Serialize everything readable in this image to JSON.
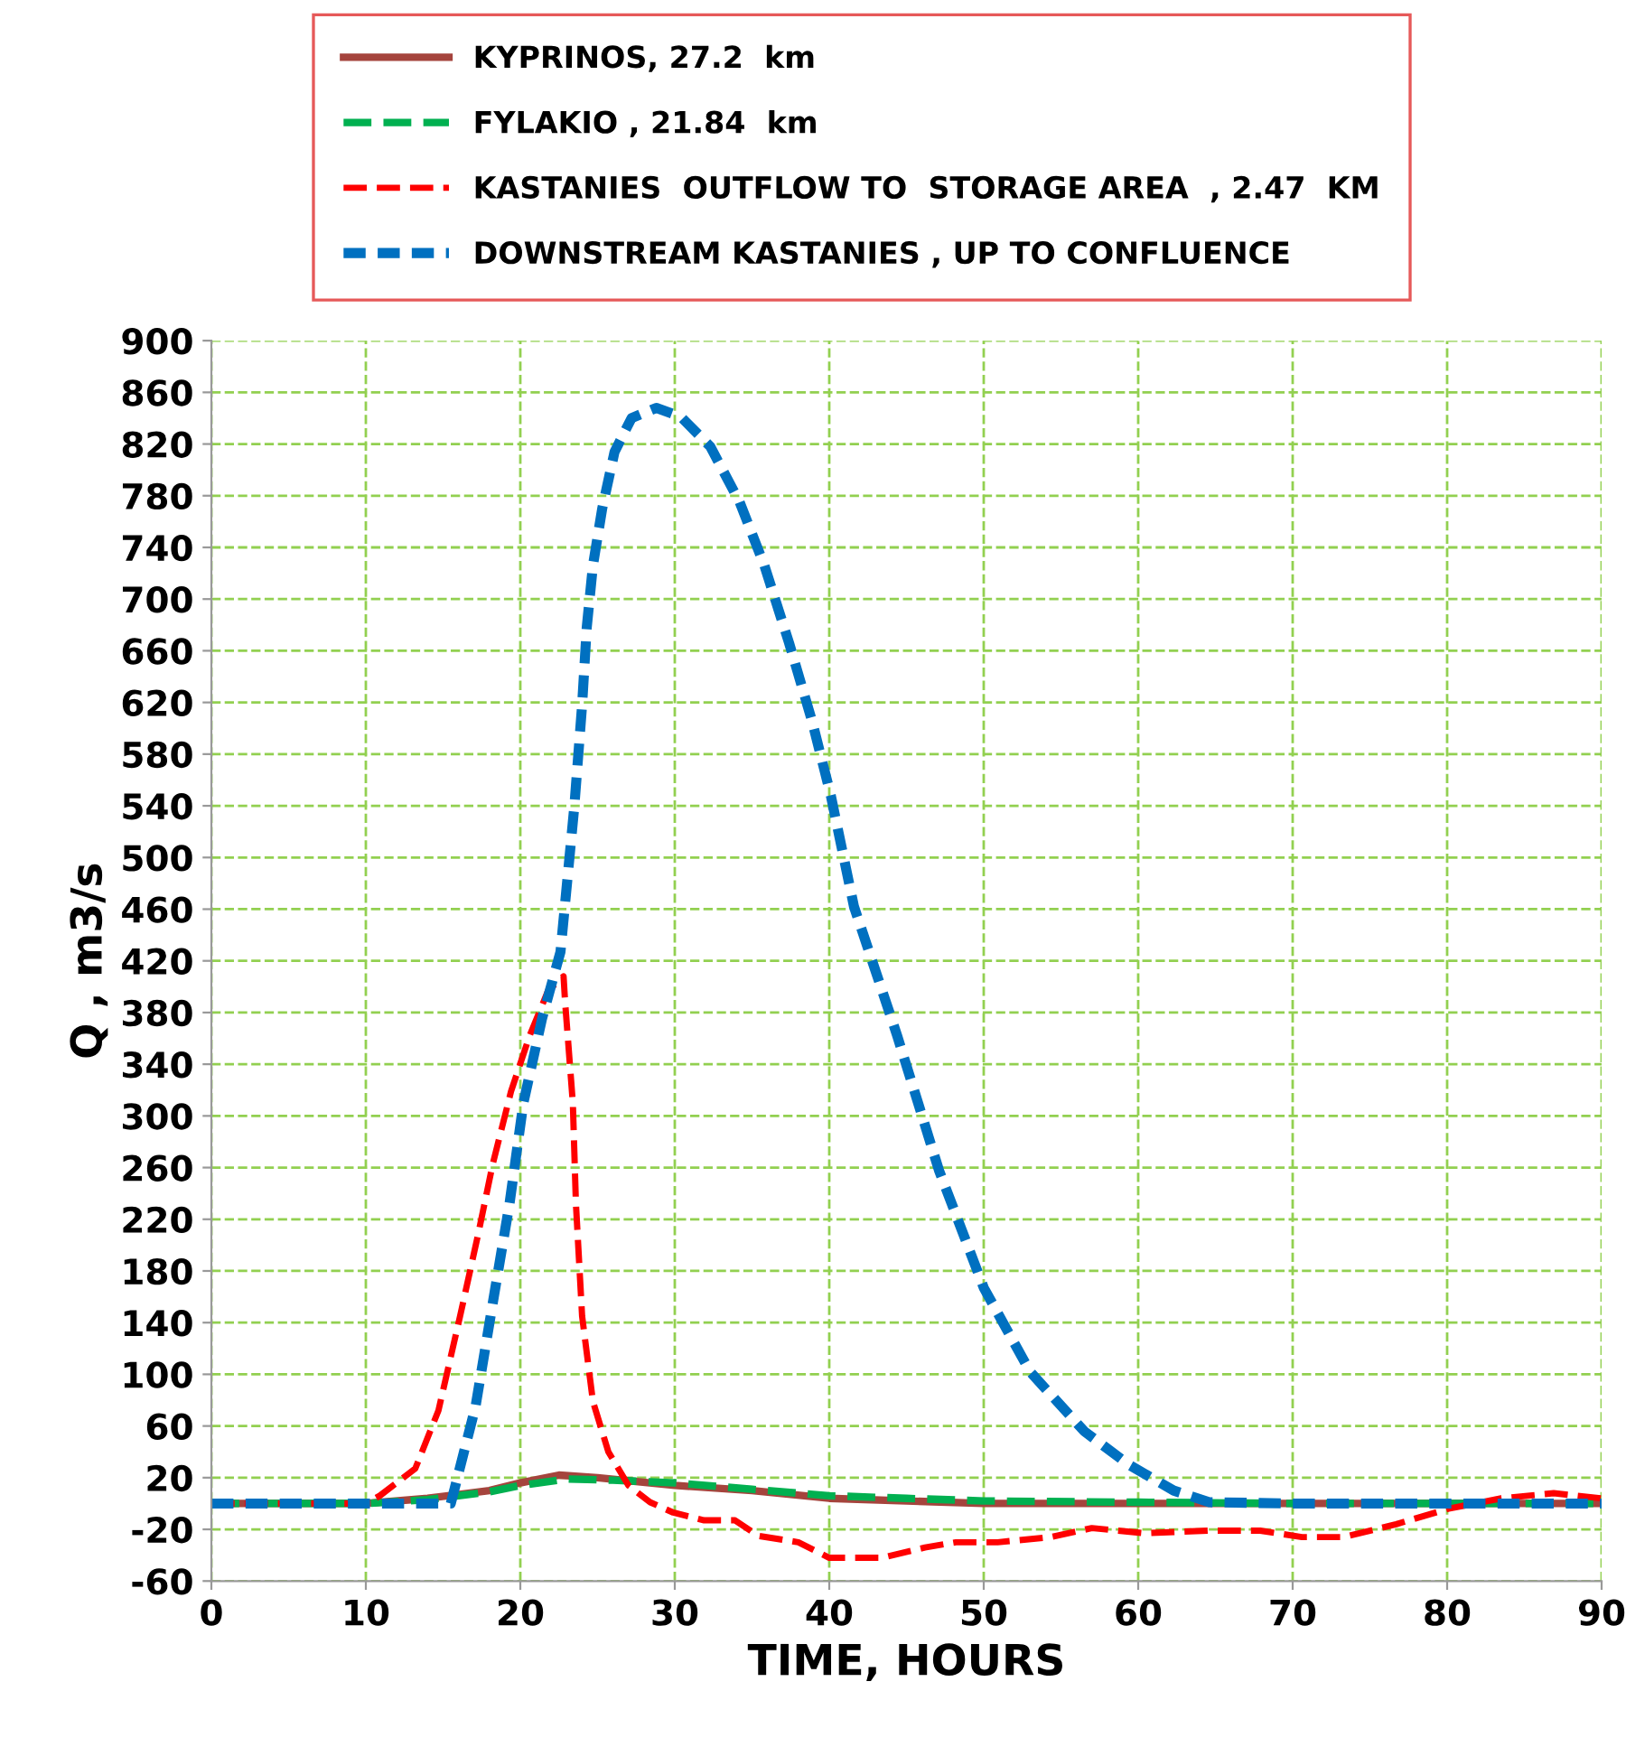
{
  "chart_data": {
    "type": "line",
    "xlabel": "TIME, HOURS",
    "ylabel": "Q , m3/s",
    "xlim": [
      0,
      90
    ],
    "xticks": [
      0,
      10,
      20,
      30,
      40,
      50,
      60,
      70,
      80,
      90
    ],
    "ylim": [
      -60,
      900
    ],
    "yticks": [
      -60,
      -20,
      20,
      60,
      100,
      140,
      180,
      220,
      260,
      300,
      340,
      380,
      420,
      460,
      500,
      540,
      580,
      620,
      660,
      700,
      740,
      780,
      820,
      860,
      900
    ],
    "grid": true,
    "legend": "top",
    "marker": "none",
    "series": [
      {
        "name": "KYPRINOS, 27.2  km",
        "color": "#a5443d",
        "line_style": "solid",
        "x": [
          0,
          10,
          14,
          18,
          20,
          22.5,
          25,
          30,
          35,
          40,
          45,
          50,
          60,
          70,
          80,
          90
        ],
        "values": [
          0,
          0,
          4,
          10,
          16,
          22,
          20,
          14,
          10,
          4,
          2,
          0,
          0,
          0,
          0,
          0
        ]
      },
      {
        "name": "FYLAKIO , 21.84  km",
        "color": "#00b050",
        "line_style": "dashed",
        "x": [
          0,
          10,
          14,
          18,
          20,
          23,
          26,
          30,
          35,
          40,
          45,
          50,
          60,
          70,
          80,
          90
        ],
        "values": [
          0,
          0,
          3,
          9,
          14,
          19,
          18,
          16,
          11,
          6,
          4,
          2,
          1,
          0,
          0,
          0
        ]
      },
      {
        "name": "KASTANIES  OUTFLOW TO  STORAGE AREA  , 2.47  KM",
        "color": "#ff0000",
        "line_style": "dashed",
        "x": [
          0,
          10,
          10.9,
          13.2,
          14.7,
          16.1,
          17.3,
          18.2,
          19.4,
          20.6,
          21.8,
          22.8,
          22.9,
          23.4,
          23.6,
          24.0,
          24.7,
          25.7,
          27.0,
          28.4,
          29.9,
          31.9,
          33.9,
          35.4,
          38,
          40,
          43.4,
          46.2,
          48.2,
          50.9,
          54.3,
          57,
          60.4,
          64.5,
          67.9,
          70.6,
          73.3,
          76.7,
          80.1,
          83.5,
          86.9,
          90
        ],
        "values": [
          0,
          0,
          6,
          27,
          72,
          145,
          210,
          262,
          319,
          362,
          397,
          408,
          388,
          310,
          232,
          145,
          79,
          40,
          14,
          1,
          -7,
          -13,
          -13,
          -25,
          -30,
          -42,
          -42,
          -34,
          -30,
          -30,
          -26,
          -19,
          -23,
          -21,
          -21,
          -26,
          -26,
          -16,
          -4,
          4,
          8,
          4
        ]
      },
      {
        "name": "DOWNSTREAM KASTANIES , UP TO CONFLUENCE",
        "color": "#0070c0",
        "line_style": "dashed",
        "x": [
          0,
          15.5,
          17.1,
          18.2,
          19.3,
          20.2,
          21.4,
          22.6,
          23.5,
          24.0,
          24.3,
          24.7,
          25.3,
          26.1,
          27.2,
          28.8,
          30.4,
          32.3,
          34.2,
          35.8,
          37.4,
          38.9,
          40.1,
          41.6,
          44.4,
          47.1,
          50,
          53,
          56.5,
          59.4,
          62.3,
          64.6,
          70,
          80,
          90
        ],
        "values": [
          0,
          0,
          75,
          154,
          232,
          310,
          375,
          427,
          540,
          618,
          678,
          726,
          770,
          814,
          840,
          848,
          841,
          818,
          775,
          726,
          666,
          605,
          548,
          462,
          362,
          258,
          167,
          102,
          56,
          30,
          10,
          1,
          0,
          0,
          0
        ]
      }
    ]
  }
}
